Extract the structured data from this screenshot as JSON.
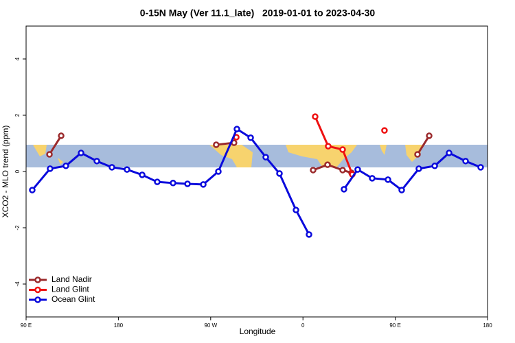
{
  "chart_data": {
    "type": "line",
    "title": "0-15N May (Ver 11.1_late)   2019-01-01 to 2023-04-30",
    "x_label": "Longitude",
    "y_label": "XCO2 - MLO trend (ppm)",
    "xlim": [
      90,
      540
    ],
    "ylim": [
      -5.17,
      5.17
    ],
    "xticks": [
      {
        "value": 90,
        "label": "90 E"
      },
      180,
      {
        "value": 270,
        "label": "90 W"
      },
      {
        "value": 360,
        "label": "0"
      },
      {
        "value": 450,
        "label": "90 E"
      },
      {
        "value": 540,
        "label": "180"
      }
    ],
    "yticks": [
      -4,
      -2,
      0,
      2,
      4
    ],
    "legend": "bottom-left",
    "series": [
      {
        "name": "Land Nadir",
        "color": "#9b2a2c",
        "x": [
          112.8,
          124.2,
          null,
          275.4,
          292.8,
          null,
          369.9,
          384.0,
          398.7,
          407.4,
          null,
          471.7,
          483.1
        ],
        "values": [
          0.61,
          1.27,
          null,
          0.95,
          1.02,
          null,
          0.05,
          0.24,
          0.05,
          -0.05,
          null,
          0.61,
          1.27
        ]
      },
      {
        "name": "Land Glint",
        "color": "#ee1111",
        "x": [
          295.0,
          null,
          371.9,
          384.6,
          398.7,
          408.1,
          null,
          439.5
        ],
        "values": [
          1.22,
          null,
          1.95,
          0.9,
          0.78,
          -0.1,
          null,
          1.46
        ]
      },
      {
        "name": "Ocean Glint",
        "color": "#0a0adc",
        "x": [
          96.0,
          113.4,
          128.8,
          143.6,
          159.0,
          173.7,
          188.4,
          203.2,
          217.9,
          233.3,
          247.4,
          262.8,
          277.5,
          295.6,
          309.0,
          323.7,
          337.1,
          353.2,
          365.9,
          null,
          400.0,
          413.4,
          427.5,
          442.9,
          456.3,
          473.0,
          488.5,
          502.5,
          518.6,
          533.3
        ],
        "values": [
          -0.66,
          0.1,
          0.2,
          0.66,
          0.37,
          0.15,
          0.07,
          -0.12,
          -0.37,
          -0.41,
          -0.44,
          -0.46,
          0.0,
          1.51,
          1.2,
          0.51,
          -0.07,
          -1.37,
          -2.24,
          null,
          -0.63,
          0.07,
          -0.24,
          -0.29,
          -0.66,
          0.1,
          0.2,
          0.66,
          0.37,
          0.15
        ]
      }
    ]
  }
}
